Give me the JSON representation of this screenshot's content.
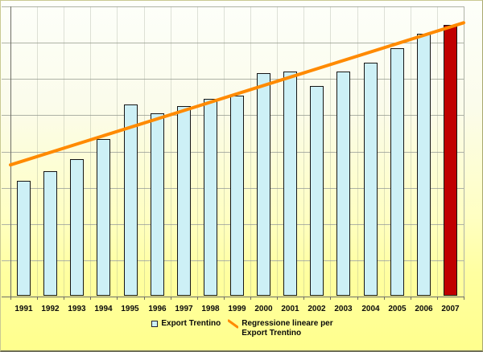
{
  "chart_data": {
    "type": "bar",
    "title": "",
    "xlabel": "",
    "ylabel": "",
    "categories": [
      "1991",
      "1992",
      "1993",
      "1994",
      "1995",
      "1996",
      "1997",
      "1998",
      "1999",
      "2000",
      "2001",
      "2002",
      "2003",
      "2004",
      "2005",
      "2006",
      "2007"
    ],
    "series": [
      {
        "name": "Export Trentino",
        "type": "bar",
        "values": [
          3.2,
          3.45,
          3.8,
          4.35,
          5.3,
          5.05,
          5.25,
          5.45,
          5.55,
          6.15,
          6.2,
          5.8,
          6.2,
          6.45,
          6.85,
          7.25,
          7.5
        ]
      },
      {
        "name": "Regressione lineare per Export Trentino",
        "type": "trendline",
        "endpoint_values": [
          3.63,
          7.55
        ]
      }
    ],
    "ylim": [
      0,
      8
    ],
    "y_gridline_step": 1,
    "y_tick_labels": [],
    "grid": "horizontal solid + faint vertical category boundaries",
    "legend_position": "bottom-center",
    "highlight": {
      "category": "2007",
      "note": "last bar drawn in dark red"
    }
  },
  "legend": {
    "items": [
      {
        "marker": "square",
        "label": "Export Trentino"
      },
      {
        "marker": "diagonal-line",
        "label_line1": "Regressione lineare per",
        "label_line2": "Export Trentino"
      }
    ]
  },
  "colors": {
    "bar_fill": "#cdf0f6",
    "bar_border": "#161616",
    "highlight_bar_fill": "#c00000",
    "trendline": "#ff8a00",
    "gridline": "#aeb2a6",
    "axis": "#6e6e66",
    "background_top": "#fdfffa",
    "background_bottom": "#ffff8d",
    "label_text": "#0a0a0a"
  }
}
